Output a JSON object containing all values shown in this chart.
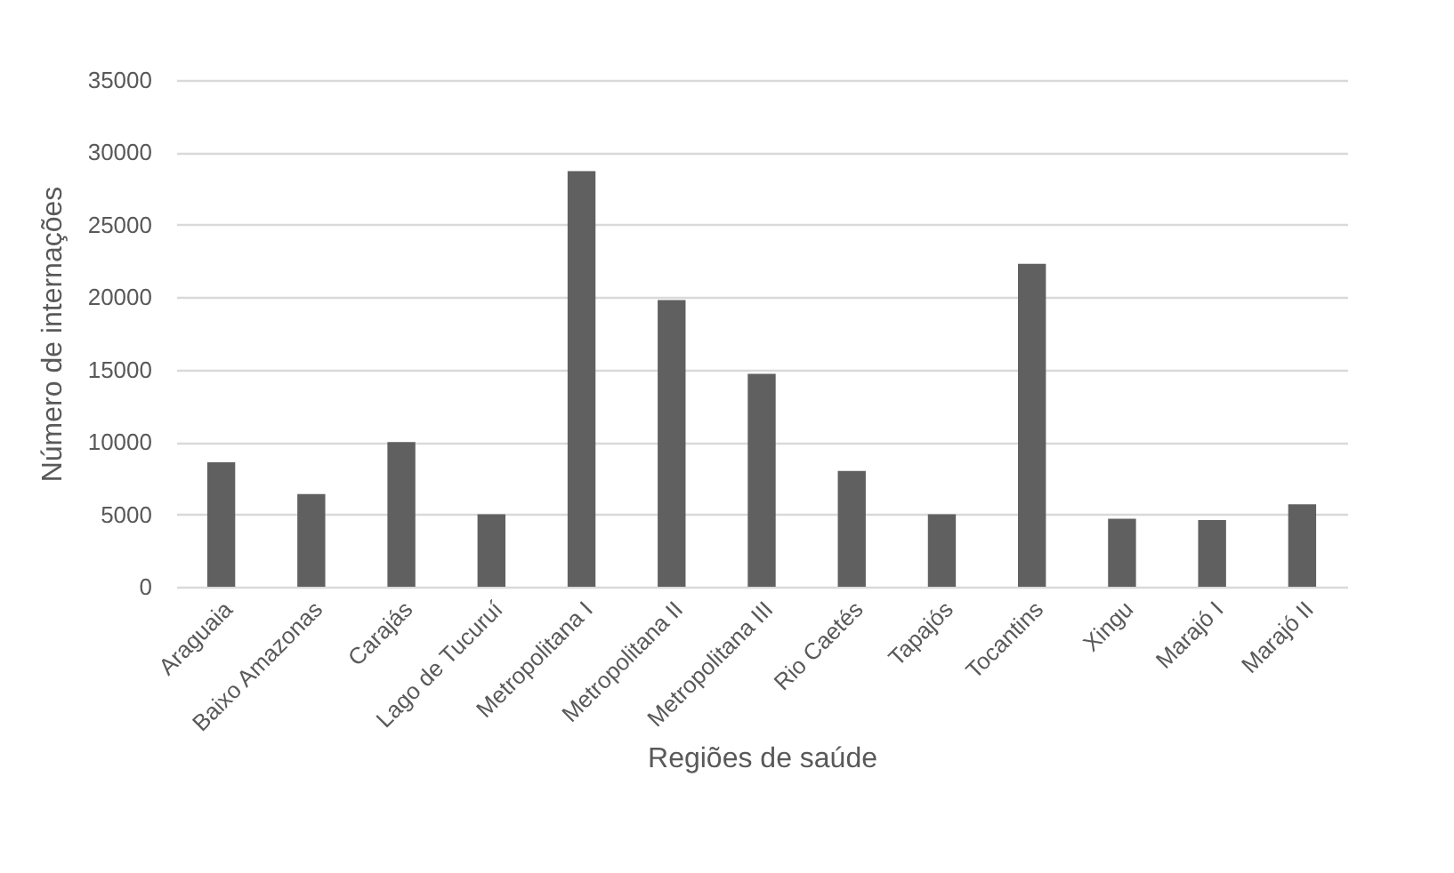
{
  "chart_data": {
    "type": "bar",
    "xlabel": "Regiões de saúde",
    "ylabel": "Número de internações",
    "categories": [
      "Araguaia",
      "Baixo Amazonas",
      "Carajás",
      "Lago de Tucuruí",
      "Metropolitana I",
      "Metropolitana II",
      "Metropolitana III",
      "Rio Caetés",
      "Tapajós",
      "Tocantins",
      "Xingu",
      "Marajó I",
      "Marajó II"
    ],
    "values": [
      8600,
      6400,
      10000,
      5000,
      28700,
      19800,
      14700,
      8000,
      5000,
      22300,
      4700,
      4600,
      5700
    ],
    "color": "#606060",
    "ylim": [
      0,
      35000
    ],
    "yticks": [
      0,
      5000,
      10000,
      15000,
      20000,
      25000,
      30000,
      35000
    ],
    "grid": "y"
  }
}
